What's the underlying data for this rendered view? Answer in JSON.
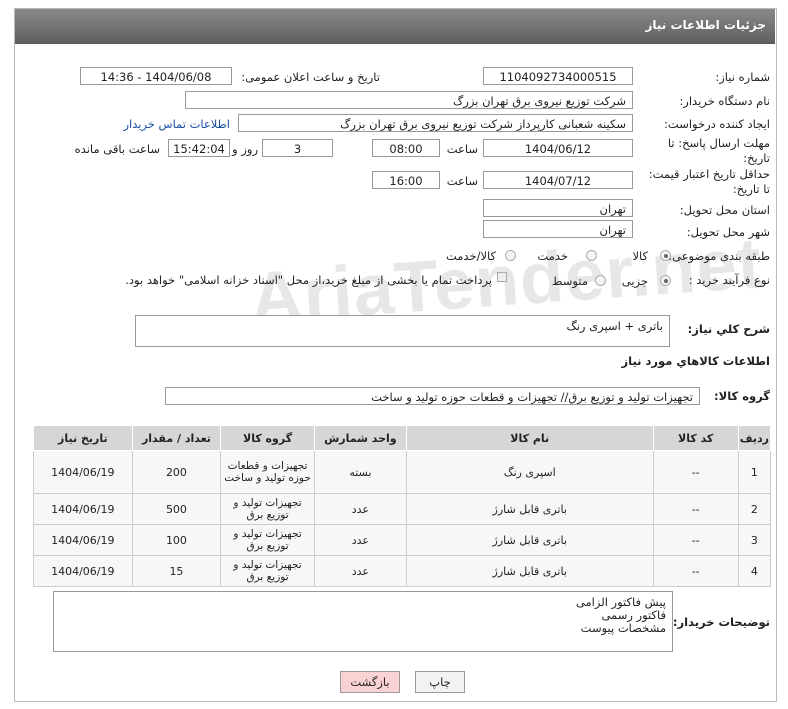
{
  "header": {
    "title": "جزئیات اطلاعات نیاز"
  },
  "watermark": "AriaTender.net",
  "fields": {
    "need_number": {
      "label": "شماره نیاز:",
      "value": "1104092734000515"
    },
    "announce": {
      "label": "تاریخ و ساعت اعلان عمومی:",
      "value": "1404/06/08 - 14:36"
    },
    "buyer": {
      "label": "نام دستگاه خریدار:",
      "value": "شرکت توزیع نیروی برق تهران بزرگ"
    },
    "creator": {
      "label": "ایجاد کننده درخواست:",
      "value": "سکینه شعبانی کارپرداز شرکت توزیع نیروی برق تهران بزرگ",
      "link": "اطلاعات تماس خریدار"
    },
    "deadline": {
      "label1": "مهلت ارسال پاسخ: تا",
      "label2": "تاریخ:",
      "date": "1404/06/12",
      "time_label": "ساعت",
      "time": "08:00",
      "days": "3",
      "days_label": "روز و",
      "remaining": "15:42:04",
      "remaining_label": "ساعت باقی مانده"
    },
    "validity": {
      "label1": "حداقل تاریخ اعتبار قیمت:",
      "label2": "تا تاریخ:",
      "date": "1404/07/12",
      "time_label": "ساعت",
      "time": "16:00"
    },
    "province": {
      "label": "استان محل تحویل:",
      "value": "تهران"
    },
    "city": {
      "label": "شهر محل تحویل:",
      "value": "تهران"
    },
    "category": {
      "label": "طبقه بندی موضوعی:",
      "options": [
        "کالا",
        "خدمت",
        "کالا/خدمت"
      ]
    },
    "process": {
      "label": "نوع فرآیند خرید :",
      "options": [
        "جزیی",
        "متوسط"
      ],
      "treasury": "پرداخت تمام یا بخشی از مبلغ خرید،از محل \"اسناد خزانه اسلامی\" خواهد بود."
    },
    "description": {
      "label": "شرح كلي نياز:",
      "value": "باتری + اسپری رنگ"
    }
  },
  "goods_title": "اطلاعات كالاهاي مورد نياز",
  "goods_group": {
    "label": "گروه کالا:",
    "value": "تجهیزات تولید و توزیع برق// تجهیزات و قطعات حوزه تولید و ساخت"
  },
  "table": {
    "headers": [
      "ردیف",
      "کد کالا",
      "نام کالا",
      "واحد شمارش",
      "گروه کالا",
      "تعداد / مقدار",
      "تاریخ نیاز"
    ],
    "rows": [
      [
        "1",
        "--",
        "اسپری رنگ",
        "بسته",
        "تجهیزات و قطعات حوزه تولید و ساخت",
        "200",
        "1404/06/19"
      ],
      [
        "2",
        "--",
        "باتری قابل شارژ",
        "عدد",
        "تجهیزات تولید و توزیع برق",
        "500",
        "1404/06/19"
      ],
      [
        "3",
        "--",
        "باتری قابل شارژ",
        "عدد",
        "تجهیزات تولید و توزیع برق",
        "100",
        "1404/06/19"
      ],
      [
        "4",
        "--",
        "باتری قابل شارژ",
        "عدد",
        "تجهیزات تولید و توزیع برق",
        "15",
        "1404/06/19"
      ]
    ]
  },
  "buyer_notes": {
    "label": "توضیحات خریدار:",
    "lines": [
      "پیش فاکتور الزامی",
      "فاکتور رسمی",
      "مشخصات پیوست"
    ]
  },
  "buttons": {
    "print": "چاپ",
    "back": "بازگشت"
  }
}
